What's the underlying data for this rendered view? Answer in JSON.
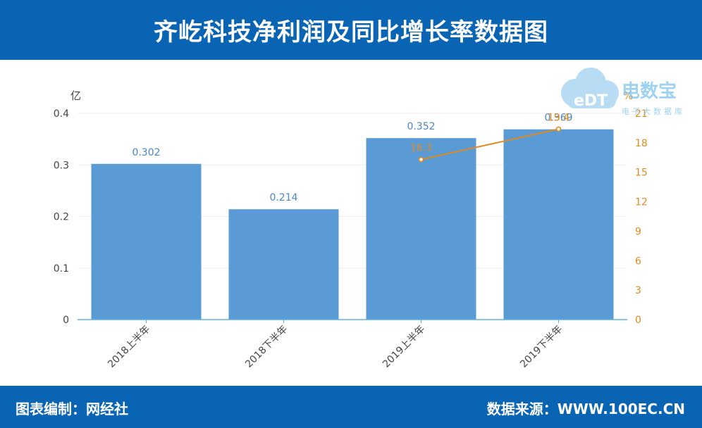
{
  "header": {
    "title": "齐屹科技净利润及同比增长率数据图"
  },
  "footer": {
    "left": "图表编制：网经社",
    "right": "数据来源：WWW.100EC.CN"
  },
  "watermark": {
    "logo_text": "eDT",
    "brand": "电数宝",
    "subtitle": "电子大数据库"
  },
  "colors": {
    "header_bg": "#0a64b4",
    "bar": "#5b9bd5",
    "line": "#e08a1e",
    "axis": "#5ab4e0",
    "grid": "#eeeeee"
  },
  "chart_data": {
    "type": "bar",
    "categories": [
      "2018上半年",
      "2018下半年",
      "2019上半年",
      "2019下半年"
    ],
    "left_axis": {
      "unit": "亿",
      "ylim": [
        0,
        0.4
      ],
      "ticks": [
        "0",
        "0.1",
        "0.2",
        "0.3",
        "0.4"
      ]
    },
    "right_axis": {
      "unit": "%",
      "ylim": [
        0,
        21
      ],
      "ticks": [
        "0",
        "3",
        "6",
        "9",
        "12",
        "15",
        "18",
        "21"
      ]
    },
    "series": [
      {
        "type": "bar",
        "axis": "left",
        "values": [
          0.302,
          0.214,
          0.352,
          0.369
        ],
        "labels": [
          "0.302",
          "0.214",
          "0.352",
          "0.369"
        ]
      },
      {
        "type": "line",
        "axis": "right",
        "values": [
          null,
          null,
          16.3,
          19.4
        ],
        "labels": [
          "",
          "",
          "16.3",
          "19.4"
        ]
      }
    ],
    "grid": true,
    "legend": "none"
  }
}
